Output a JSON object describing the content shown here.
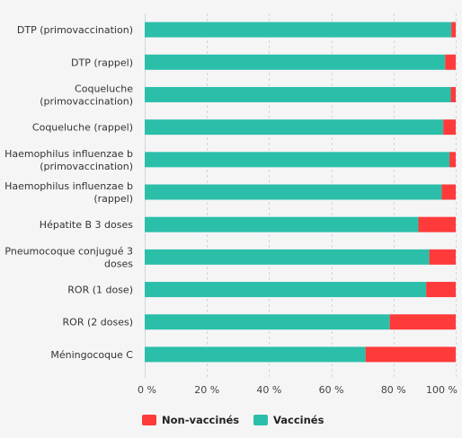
{
  "chart_data": {
    "type": "bar",
    "orientation": "horizontal",
    "stacked": true,
    "categories": [
      "DTP (primovaccination)",
      "DTP (rappel)",
      "Coqueluche (primovaccination)",
      "Coqueluche (rappel)",
      "Haemophilus influenzae b (primovaccination)",
      "Haemophilus influenzae b (rappel)",
      "Hépatite B 3 doses",
      "Pneumocoque conjugué 3 doses",
      "ROR (1 dose)",
      "ROR (2 doses)",
      "Méningocoque C"
    ],
    "category_lines": [
      [
        "DTP (primovaccination)"
      ],
      [
        "DTP (rappel)"
      ],
      [
        "Coqueluche",
        "(primovaccination)"
      ],
      [
        "Coqueluche (rappel)"
      ],
      [
        "Haemophilus influenzae b",
        "(primovaccination)"
      ],
      [
        "Haemophilus influenzae b",
        "(rappel)"
      ],
      [
        "Hépatite B 3 doses"
      ],
      [
        "Pneumocoque conjugué 3",
        "doses"
      ],
      [
        "ROR (1 dose)"
      ],
      [
        "ROR (2 doses)"
      ],
      [
        "Méningocoque C"
      ]
    ],
    "series": [
      {
        "name": "Vaccinés",
        "color": "#2bbfaa",
        "values": [
          98.6,
          96.6,
          98.4,
          96.0,
          98.0,
          95.5,
          88.0,
          91.5,
          90.5,
          78.8,
          71.0
        ]
      },
      {
        "name": "Non-vaccinés",
        "color": "#ff3a3a",
        "values": [
          1.4,
          3.4,
          1.6,
          4.0,
          2.0,
          4.5,
          12.0,
          8.5,
          9.5,
          21.2,
          29.0
        ]
      }
    ],
    "xlim": [
      0,
      100
    ],
    "ticks": [
      0,
      20,
      40,
      60,
      80,
      100
    ],
    "tick_labels": [
      "0 %",
      "20 %",
      "40 %",
      "60 %",
      "80 %",
      "100 %"
    ],
    "legend": {
      "position": "bottom-left",
      "items": [
        {
          "label": "Non-vaccinés",
          "color": "#ff3a3a"
        },
        {
          "label": "Vaccinés",
          "color": "#2bbfaa"
        }
      ]
    },
    "grid": true,
    "colors": {
      "background": "#f5f5f6",
      "grid": "#cfd6df"
    }
  }
}
